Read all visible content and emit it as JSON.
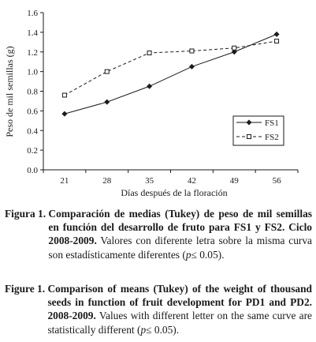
{
  "chart_data": {
    "type": "line",
    "title": "",
    "xlabel": "Días después de la floración",
    "ylabel": "Peso de mil semillas (g)",
    "categories": [
      "21",
      "28",
      "35",
      "42",
      "49",
      "56"
    ],
    "x": [
      21,
      28,
      35,
      42,
      49,
      56
    ],
    "ylim": [
      0,
      1.6
    ],
    "yticks": [
      "0.0",
      "0.2",
      "0.4",
      "0.6",
      "0.8",
      "1.0",
      "1.2",
      "1.4",
      "1.6"
    ],
    "grid": false,
    "legend_position": "bottom-right",
    "series": [
      {
        "name": "FS1",
        "values": [
          0.57,
          0.69,
          0.85,
          1.05,
          1.2,
          1.38
        ],
        "line": "solid",
        "marker": "filled-diamond",
        "color": "#1a1a1a"
      },
      {
        "name": "FS2",
        "values": [
          0.76,
          1.0,
          1.19,
          1.21,
          1.24,
          1.31
        ],
        "line": "dashed",
        "marker": "open-square",
        "color": "#1a1a1a"
      }
    ]
  },
  "caption_es": {
    "label": "Figura 1. ",
    "bold": "Comparación de medias (Tukey) de peso de mil semillas en función del desarrollo de fruto para FS1 y FS2. Ciclo 2008-2009.",
    "rest_pre": " Valores con diferente letra sobre la misma curva son estadísticamente diferentes (",
    "p": "p",
    "rest_post": "≤ 0.05)."
  },
  "caption_en": {
    "label": "Figure 1. ",
    "bold": "Comparison of means (Tukey) of the weight of thousand seeds in function of fruit development for PD1 and PD2. 2008-2009.",
    "rest_pre": " Values with different letter on the same curve are statistically different (",
    "p": "p",
    "rest_post": "≤ 0.05)."
  }
}
